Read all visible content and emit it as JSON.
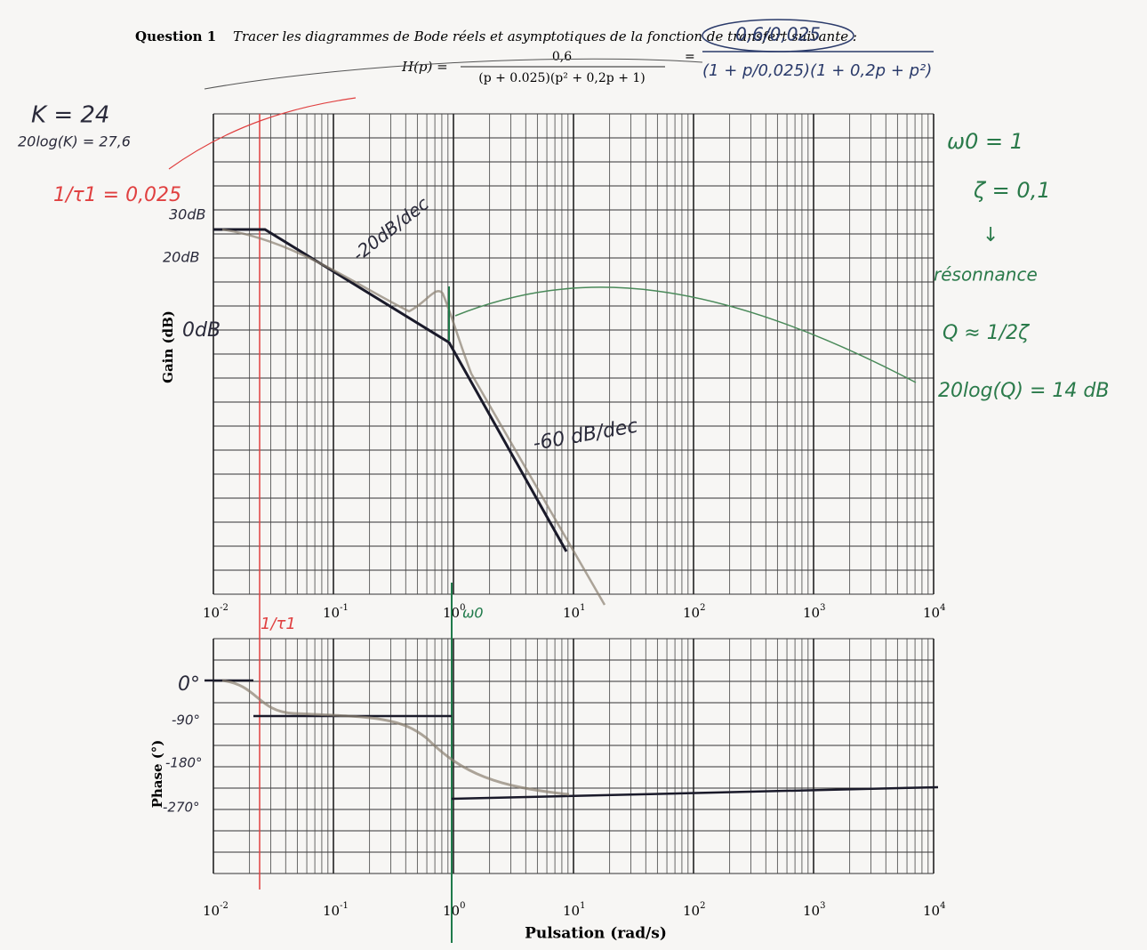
{
  "header": {
    "question": "Question 1",
    "instruction": "Tracer les diagrammes de Bode réels et asymptotiques de la fonction de transfert suivante :"
  },
  "formula": {
    "lhs": "H(p) =",
    "numerator": "0,6",
    "denominator": "(p + 0.025)(p² + 0,2p + 1)",
    "eq": "=",
    "hand_numerator": "0,6/0,025",
    "hand_denominator": "(1 + p/0,025)(1 + 0,2p + p²)"
  },
  "gain_plot": {
    "axis_label": "Gain (dB)",
    "ticks": [
      {
        "base": "10",
        "exp": "-2"
      },
      {
        "base": "10",
        "exp": "-1"
      },
      {
        "base": "10",
        "exp": "0"
      },
      {
        "base": "10",
        "exp": "1"
      },
      {
        "base": "10",
        "exp": "2"
      },
      {
        "base": "10",
        "exp": "3"
      },
      {
        "base": "10",
        "exp": "4"
      }
    ]
  },
  "phase_plot": {
    "axis_label": "Phase (°)",
    "ticks": [
      {
        "base": "10",
        "exp": "-2"
      },
      {
        "base": "10",
        "exp": "-1"
      },
      {
        "base": "10",
        "exp": "0"
      },
      {
        "base": "10",
        "exp": "1"
      },
      {
        "base": "10",
        "exp": "2"
      },
      {
        "base": "10",
        "exp": "3"
      },
      {
        "base": "10",
        "exp": "4"
      }
    ],
    "x_label": "Pulsation (rad/s)"
  },
  "notes": {
    "k": "K = 24",
    "log_k": "20log(K) = 27,6",
    "tau": "1/τ1 = 0,025",
    "db30": "30dB",
    "db20": "20dB",
    "db0": "0dB",
    "slope1": "-20dB/dec",
    "slope2": "-60 dB/dec",
    "tau_mark": "1/τ1",
    "w0_mark": "ω0",
    "w0": "ω0 = 1",
    "zeta": "ζ = 0,1",
    "arrow": "↓",
    "resonance": "résonnance",
    "q": "Q ≈ 1/2ζ",
    "log_q": "20log(Q) = 14 dB",
    "p0": "0°",
    "p90": "-90°",
    "p180": "-180°",
    "p270": "-270°"
  }
}
